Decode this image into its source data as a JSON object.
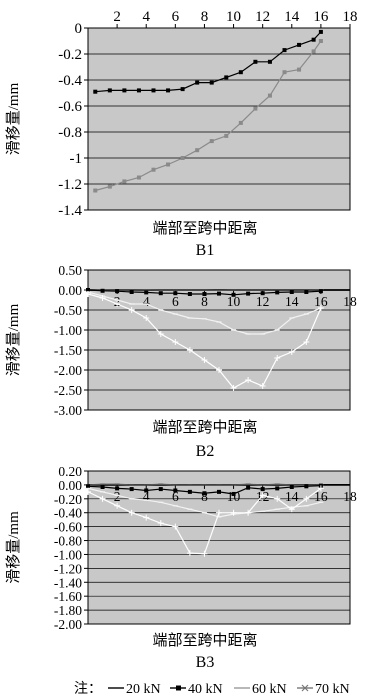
{
  "chart_data": [
    {
      "type": "line",
      "name": "B1",
      "title": "B1",
      "xlabel": "端部至跨中距离",
      "ylabel": "滑移量/mm",
      "xlim": [
        0,
        18
      ],
      "ylim": [
        -1.4,
        0
      ],
      "xticks": [
        2,
        4,
        6,
        8,
        10,
        12,
        14,
        16,
        18
      ],
      "yticks": [
        0,
        -0.2,
        -0.4,
        -0.6,
        -0.8,
        -1,
        -1.2,
        -1.4
      ],
      "ytick_labels": [
        "0",
        "-0.2",
        "-0.4",
        "-0.6",
        "-0.8",
        "-1",
        "-1.2",
        "-1.4"
      ],
      "xaxis_position": "top",
      "background": "#c8c8c8",
      "grid": true,
      "series": [
        {
          "key": "40kN",
          "color": "#000000",
          "x": [
            0.5,
            1.5,
            2.5,
            3.5,
            4.5,
            5.5,
            6.5,
            7.5,
            8.5,
            9.5,
            10.5,
            11.5,
            12.5,
            13.5,
            14.5,
            15.5,
            16.0
          ],
          "values": [
            -0.49,
            -0.48,
            -0.48,
            -0.48,
            -0.48,
            -0.48,
            -0.47,
            -0.42,
            -0.42,
            -0.38,
            -0.34,
            -0.26,
            -0.26,
            -0.17,
            -0.13,
            -0.09,
            -0.03
          ]
        },
        {
          "key": "60kN",
          "color": "#8a8a8a",
          "x": [
            0.5,
            1.5,
            2.5,
            3.5,
            4.5,
            5.5,
            6.5,
            7.5,
            8.5,
            9.5,
            10.5,
            11.5,
            12.5,
            13.5,
            14.5,
            15.5,
            16.0
          ],
          "values": [
            -1.25,
            -1.22,
            -1.18,
            -1.15,
            -1.09,
            -1.05,
            -1.0,
            -0.94,
            -0.87,
            -0.83,
            -0.73,
            -0.62,
            -0.52,
            -0.34,
            -0.32,
            -0.18,
            -0.1
          ]
        }
      ]
    },
    {
      "type": "line",
      "name": "B2",
      "title": "B2",
      "xlabel": "端部至跨中距离",
      "ylabel": "滑移量/mm",
      "xlim": [
        0,
        18
      ],
      "ylim": [
        -3.0,
        0.5
      ],
      "xticks": [
        2,
        4,
        6,
        8,
        10,
        12,
        14,
        16,
        18
      ],
      "yticks": [
        0.5,
        0,
        -0.5,
        -1.0,
        -1.5,
        -2.0,
        -2.5,
        -3.0
      ],
      "ytick_labels": [
        "0.50",
        "0.00",
        "-0.50",
        "-1.00",
        "-1.50",
        "-2.00",
        "-2.50",
        "-3.00"
      ],
      "xaxis_position": "zero",
      "background": "#c8c8c8",
      "grid": true,
      "series": [
        {
          "key": "20kN",
          "color": "#555555",
          "x": [
            0,
            1,
            2,
            3,
            4,
            5,
            6,
            7,
            8,
            9,
            10,
            11,
            12,
            13,
            14,
            15,
            16
          ],
          "values": [
            0,
            0.01,
            0,
            0,
            0.01,
            0,
            0,
            0,
            0,
            -0.01,
            0,
            0,
            0,
            0,
            0,
            0,
            0.01
          ]
        },
        {
          "key": "40kN",
          "color": "#000000",
          "x": [
            0,
            1,
            2,
            3,
            4,
            5,
            6,
            7,
            8,
            9,
            10,
            11,
            12,
            13,
            14,
            15,
            16
          ],
          "values": [
            0,
            -0.02,
            -0.03,
            -0.05,
            -0.06,
            -0.08,
            -0.08,
            -0.1,
            -0.1,
            -0.09,
            -0.12,
            -0.09,
            -0.08,
            -0.06,
            -0.05,
            -0.05,
            -0.03
          ]
        },
        {
          "key": "60kN",
          "color": "#f2f2f2",
          "x": [
            0,
            1,
            2,
            3,
            4,
            5,
            6,
            7,
            8,
            9,
            10,
            11,
            12,
            13,
            14,
            15,
            16
          ],
          "values": [
            -0.05,
            -0.15,
            -0.25,
            -0.35,
            -0.35,
            -0.5,
            -0.6,
            -0.7,
            -0.72,
            -0.8,
            -1.0,
            -1.1,
            -1.1,
            -1.0,
            -0.7,
            -0.6,
            -0.45
          ]
        },
        {
          "key": "70kN",
          "color": "#ffffff",
          "x": [
            0,
            1,
            2,
            3,
            4,
            5,
            6,
            7,
            8,
            9,
            10,
            11,
            12,
            13,
            14,
            15,
            16
          ],
          "values": [
            -0.1,
            -0.2,
            -0.35,
            -0.5,
            -0.7,
            -1.1,
            -1.3,
            -1.5,
            -1.75,
            -2.0,
            -2.45,
            -2.25,
            -2.4,
            -1.7,
            -1.55,
            -1.3,
            -0.45
          ]
        }
      ]
    },
    {
      "type": "line",
      "name": "B3",
      "title": "B3",
      "xlabel": "端部至跨中距离",
      "ylabel": "滑移量/mm",
      "xlim": [
        0,
        18
      ],
      "ylim": [
        -2.0,
        0.2
      ],
      "xticks": [
        2,
        4,
        6,
        8,
        10,
        12,
        14,
        16,
        18
      ],
      "yticks": [
        0.2,
        0,
        -0.2,
        -0.4,
        -0.6,
        -0.8,
        -1.0,
        -1.2,
        -1.4,
        -1.6,
        -1.8,
        -2.0
      ],
      "ytick_labels": [
        "0.20",
        "0.00",
        "-0.20",
        "-0.40",
        "-0.60",
        "-0.80",
        "-1.00",
        "-1.20",
        "-1.40",
        "-1.60",
        "-1.80",
        "-2.00"
      ],
      "xaxis_position": "zero",
      "background": "#c8c8c8",
      "grid": true,
      "series": [
        {
          "key": "20kN",
          "color": "#555555",
          "x": [
            0,
            1,
            2,
            3,
            4,
            5,
            6,
            7,
            8,
            9,
            10,
            11,
            12,
            13,
            14,
            15,
            16
          ],
          "values": [
            0,
            0.01,
            0.01,
            0,
            0,
            0.01,
            0,
            0,
            0,
            0,
            0,
            0.01,
            0,
            0.01,
            0,
            0,
            0
          ]
        },
        {
          "key": "40kN",
          "color": "#000000",
          "x": [
            0,
            1,
            2,
            3,
            4,
            5,
            6,
            7,
            8,
            9,
            10,
            11,
            12,
            13,
            14,
            15,
            16
          ],
          "values": [
            -0.02,
            -0.03,
            -0.05,
            -0.06,
            -0.08,
            -0.06,
            -0.08,
            -0.1,
            -0.12,
            -0.1,
            -0.13,
            -0.04,
            -0.06,
            -0.05,
            -0.03,
            -0.02,
            -0.01
          ]
        },
        {
          "key": "60kN",
          "color": "#f2f2f2",
          "x": [
            0,
            1,
            2,
            3,
            4,
            5,
            6,
            7,
            8,
            9,
            10,
            11,
            12,
            13,
            14,
            15,
            16
          ],
          "values": [
            -0.05,
            -0.1,
            -0.15,
            -0.2,
            -0.22,
            -0.25,
            -0.3,
            -0.35,
            -0.4,
            -0.46,
            -0.42,
            -0.4,
            -0.38,
            -0.35,
            -0.32,
            -0.3,
            -0.25
          ]
        },
        {
          "key": "70kN",
          "color": "#ffffff",
          "x": [
            0,
            1,
            2,
            3,
            4,
            5,
            6,
            7,
            8,
            9,
            10,
            11,
            12,
            13,
            14,
            15,
            16
          ],
          "values": [
            -0.1,
            -0.2,
            -0.3,
            -0.4,
            -0.47,
            -0.55,
            -0.6,
            -0.98,
            -0.99,
            -0.4,
            -0.4,
            -0.4,
            -0.15,
            -0.2,
            -0.35,
            -0.2,
            -0.05
          ]
        }
      ]
    }
  ],
  "legend": {
    "prefix": "注：",
    "position": "bottom",
    "items": [
      {
        "key": "20kN",
        "label": "20 kN",
        "color": "#000000",
        "marker": "dash"
      },
      {
        "key": "40kN",
        "label": "40 kN",
        "color": "#000000",
        "marker": "dot"
      },
      {
        "key": "60kN",
        "label": "60 kN",
        "color": "#999999",
        "marker": "dash"
      },
      {
        "key": "70kN",
        "label": "70 kN",
        "color": "#777777",
        "marker": "star"
      }
    ]
  }
}
